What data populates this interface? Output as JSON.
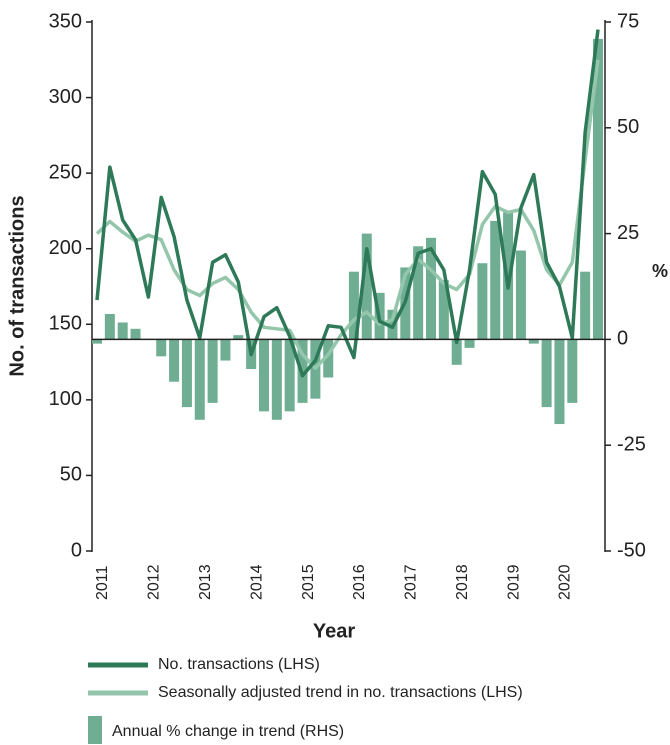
{
  "chart_data": {
    "type": "combo",
    "ylabel": "No. of transactions",
    "y2label": "%",
    "xlabel": "Year",
    "categories": [
      "2011",
      null,
      null,
      null,
      "2012",
      null,
      null,
      null,
      "2013",
      null,
      null,
      null,
      "2014",
      null,
      null,
      null,
      "2015",
      null,
      null,
      null,
      "2016",
      null,
      null,
      null,
      "2017",
      null,
      null,
      null,
      "2018",
      null,
      null,
      null,
      "2019",
      null,
      null,
      null,
      "2020",
      null,
      null,
      null
    ],
    "series": [
      {
        "name": "Annual % change in trend (RHS)",
        "type": "bar",
        "axis": "y2",
        "color": "#6fae92",
        "values": [
          -1,
          6,
          4,
          2.5,
          0,
          -4,
          -10,
          -16,
          -19,
          -15,
          -5,
          1,
          -7,
          -17,
          -19,
          -17,
          -15,
          -14,
          -9,
          0,
          16,
          25,
          11,
          7,
          17,
          22,
          24,
          14,
          -6,
          -2,
          18,
          28,
          30,
          21,
          -1,
          -16,
          -20,
          -15,
          16,
          71
        ]
      },
      {
        "name": "No. transactions (LHS)",
        "type": "line",
        "color": "#2e7a58",
        "values": [
          166,
          254,
          219,
          206,
          168,
          234,
          208,
          166,
          141,
          191,
          196,
          178,
          130,
          155,
          161,
          142,
          116,
          126,
          149,
          148,
          128,
          200,
          152,
          148,
          165,
          197,
          200,
          186,
          138,
          186,
          251,
          236,
          174,
          227,
          249,
          191,
          175,
          141,
          277,
          345
        ]
      },
      {
        "name": "Seasonally adjusted trend in no. transactions (LHS)",
        "type": "line",
        "color": "#93c6ab",
        "values": [
          210,
          218,
          211,
          205,
          209,
          206,
          186,
          173,
          169,
          177,
          181,
          173,
          158,
          148,
          147,
          146,
          130,
          121,
          130,
          143,
          153,
          158,
          150,
          153,
          183,
          193,
          186,
          177,
          173,
          183,
          216,
          228,
          224,
          226,
          212,
          186,
          176,
          191,
          259,
          325
        ]
      }
    ],
    "ylim": [
      0,
      350
    ],
    "yticks": [
      0,
      50,
      100,
      150,
      200,
      250,
      300,
      350
    ],
    "y2lim": [
      -50,
      75
    ],
    "y2ticks": [
      -50,
      -25,
      0,
      25,
      50,
      75
    ]
  }
}
